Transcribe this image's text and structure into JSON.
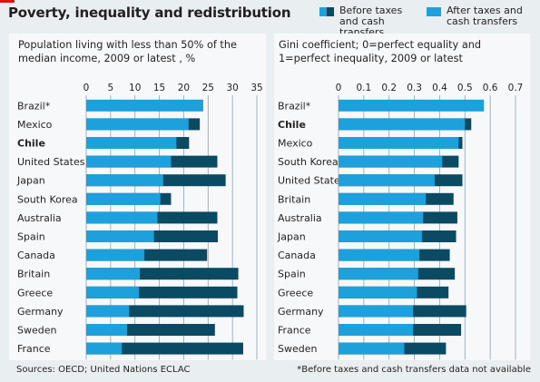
{
  "title": "Poverty, inequality and redistribution",
  "legend": {
    "before": "Before taxes and cash transfers",
    "after": "After taxes and cash transfers"
  },
  "colors": {
    "after": "#1da1dc",
    "before": "#0b4a63",
    "grid": "#8ea3ad",
    "background": "#e9eef1",
    "panel": "#f6f8f9"
  },
  "footer": {
    "sources": "Sources: OECD; United Nations ECLAC",
    "note": "*Before taxes and cash transfers data not available"
  },
  "chart_data": [
    {
      "type": "bar",
      "orientation": "horizontal",
      "stacked": "overlay",
      "title": "Population living with less than 50% of the median income, 2009 or latest , %",
      "xlim": [
        0,
        35
      ],
      "ticks": [
        "0",
        "5",
        "10",
        "15",
        "20",
        "25",
        "30",
        "35"
      ],
      "grid": true,
      "categories": [
        "Brazil*",
        "Mexico",
        "Chile",
        "United States",
        "Japan",
        "South Korea",
        "Australia",
        "Spain",
        "Canada",
        "Britain",
        "Greece",
        "Germany",
        "Sweden",
        "France"
      ],
      "bold": [
        "Chile"
      ],
      "series": [
        {
          "name": "After taxes and cash transfers",
          "values": [
            24.0,
            21.0,
            18.5,
            17.4,
            15.8,
            15.2,
            14.6,
            13.9,
            11.9,
            11.0,
            10.8,
            8.8,
            8.4,
            7.3
          ]
        },
        {
          "name": "Before taxes and cash transfers",
          "values": [
            null,
            23.3,
            21.1,
            26.9,
            28.6,
            17.4,
            26.9,
            27.0,
            24.8,
            31.2,
            31.0,
            32.3,
            26.4,
            32.2
          ]
        }
      ]
    },
    {
      "type": "bar",
      "orientation": "horizontal",
      "stacked": "overlay",
      "title": "Gini coefficient; 0=perfect equality and 1=perfect inequality, 2009 or latest",
      "xlim": [
        0,
        0.7
      ],
      "ticks": [
        "0",
        "0.1",
        "0.2",
        "0.3",
        "0.4",
        "0.5",
        "0.6",
        "0.7"
      ],
      "grid": true,
      "categories": [
        "Brazil*",
        "Chile",
        "Mexico",
        "South Korea",
        "United States",
        "Britain",
        "Australia",
        "Japan",
        "Canada",
        "Spain",
        "Greece",
        "Germany",
        "France",
        "Sweden"
      ],
      "bold": [
        "Chile"
      ],
      "series": [
        {
          "name": "After taxes and cash transfers",
          "values": [
            0.575,
            0.5,
            0.475,
            0.41,
            0.38,
            0.345,
            0.335,
            0.33,
            0.32,
            0.315,
            0.31,
            0.295,
            0.295,
            0.26
          ]
        },
        {
          "name": "Before taxes and cash transfers",
          "values": [
            null,
            0.525,
            0.49,
            0.475,
            0.49,
            0.455,
            0.47,
            0.465,
            0.44,
            0.46,
            0.435,
            0.505,
            0.485,
            0.425
          ]
        }
      ]
    }
  ]
}
